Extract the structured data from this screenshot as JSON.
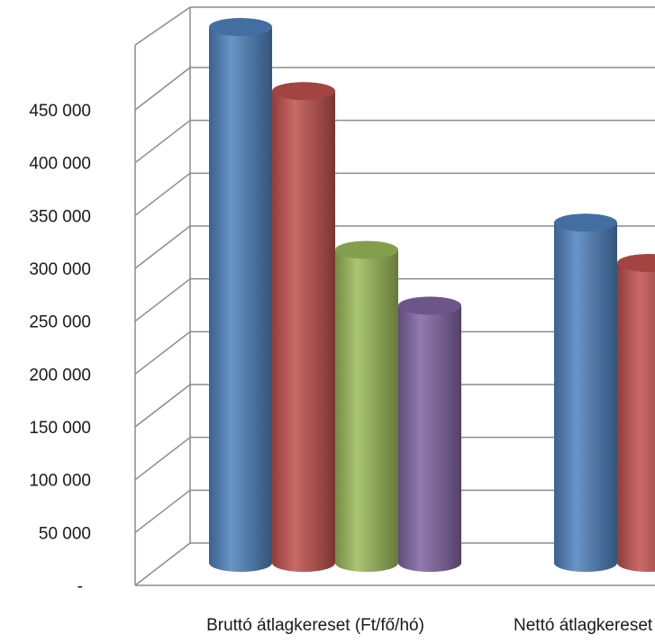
{
  "chart_data": {
    "type": "bar",
    "style": "3d-cylinder",
    "categories": [
      "Bruttó átlagkereset (Ft/fő/hó)",
      "Nettó átlagkereset (Ft/fő/hó)"
    ],
    "series": [
      {
        "color": "#4f81bd",
        "values": [
          452000,
          287000
        ]
      },
      {
        "color": "#c0504d",
        "values": [
          398000,
          253000
        ]
      },
      {
        "color": "#9bbb59",
        "values": [
          264000,
          null
        ]
      },
      {
        "color": "#8064a2",
        "values": [
          217000,
          null
        ]
      }
    ],
    "yticks": [
      "-",
      "50 000",
      "100 000",
      "150 000",
      "200 000",
      "250 000",
      "300 000",
      "350 000",
      "400 000",
      "450 000"
    ],
    "ylim": [
      0,
      450000
    ],
    "grid": true,
    "legend": "none"
  }
}
